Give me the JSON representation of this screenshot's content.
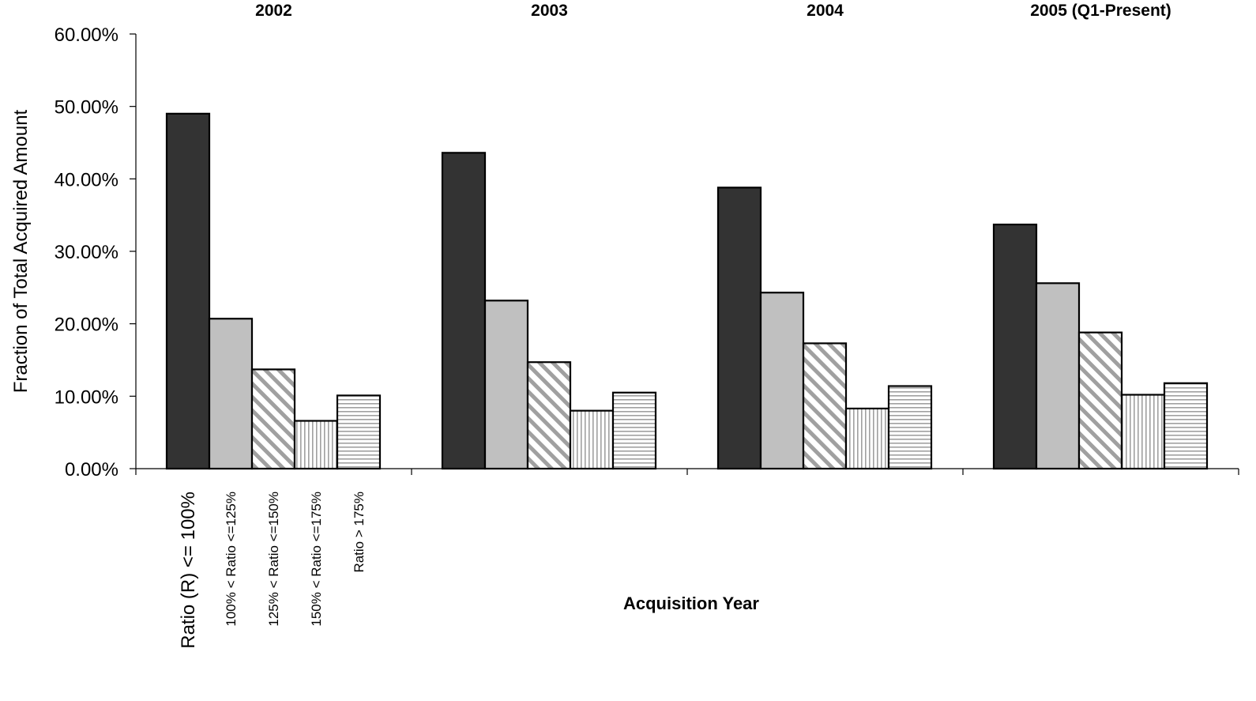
{
  "chart_data": {
    "type": "bar",
    "groups": [
      "2002",
      "2003",
      "2004",
      "2005 (Q1-Present)"
    ],
    "series": [
      {
        "name": "Ratio (R) <= 100%",
        "values": [
          49.0,
          43.6,
          38.8,
          33.7
        ],
        "fill": "solid",
        "color": "#333333"
      },
      {
        "name": "100% <  Ratio <=125%",
        "values": [
          20.7,
          23.2,
          24.3,
          25.6
        ],
        "fill": "solid",
        "color": "#c0c0c0"
      },
      {
        "name": "125% <  Ratio <=150%",
        "values": [
          13.7,
          14.7,
          17.3,
          18.8
        ],
        "fill": "diagonal-hatch",
        "color": "#a0a0a0"
      },
      {
        "name": "150% <  Ratio <=175%",
        "values": [
          6.6,
          8.0,
          8.3,
          10.2
        ],
        "fill": "vertical-hatch",
        "color": "#a0a0a0"
      },
      {
        "name": "Ratio > 175%",
        "values": [
          10.1,
          10.5,
          11.4,
          11.8
        ],
        "fill": "horizontal-hatch",
        "color": "#a0a0a0"
      }
    ],
    "ylabel": "Fraction of Total Acquired Amount",
    "xlabel": "Acquisition Year",
    "ylim": [
      0,
      60
    ],
    "yticks": [
      "0.00%",
      "10.00%",
      "20.00%",
      "30.00%",
      "40.00%",
      "50.00%",
      "60.00%"
    ],
    "legend": "rotated category labels below first group",
    "grid": false
  }
}
